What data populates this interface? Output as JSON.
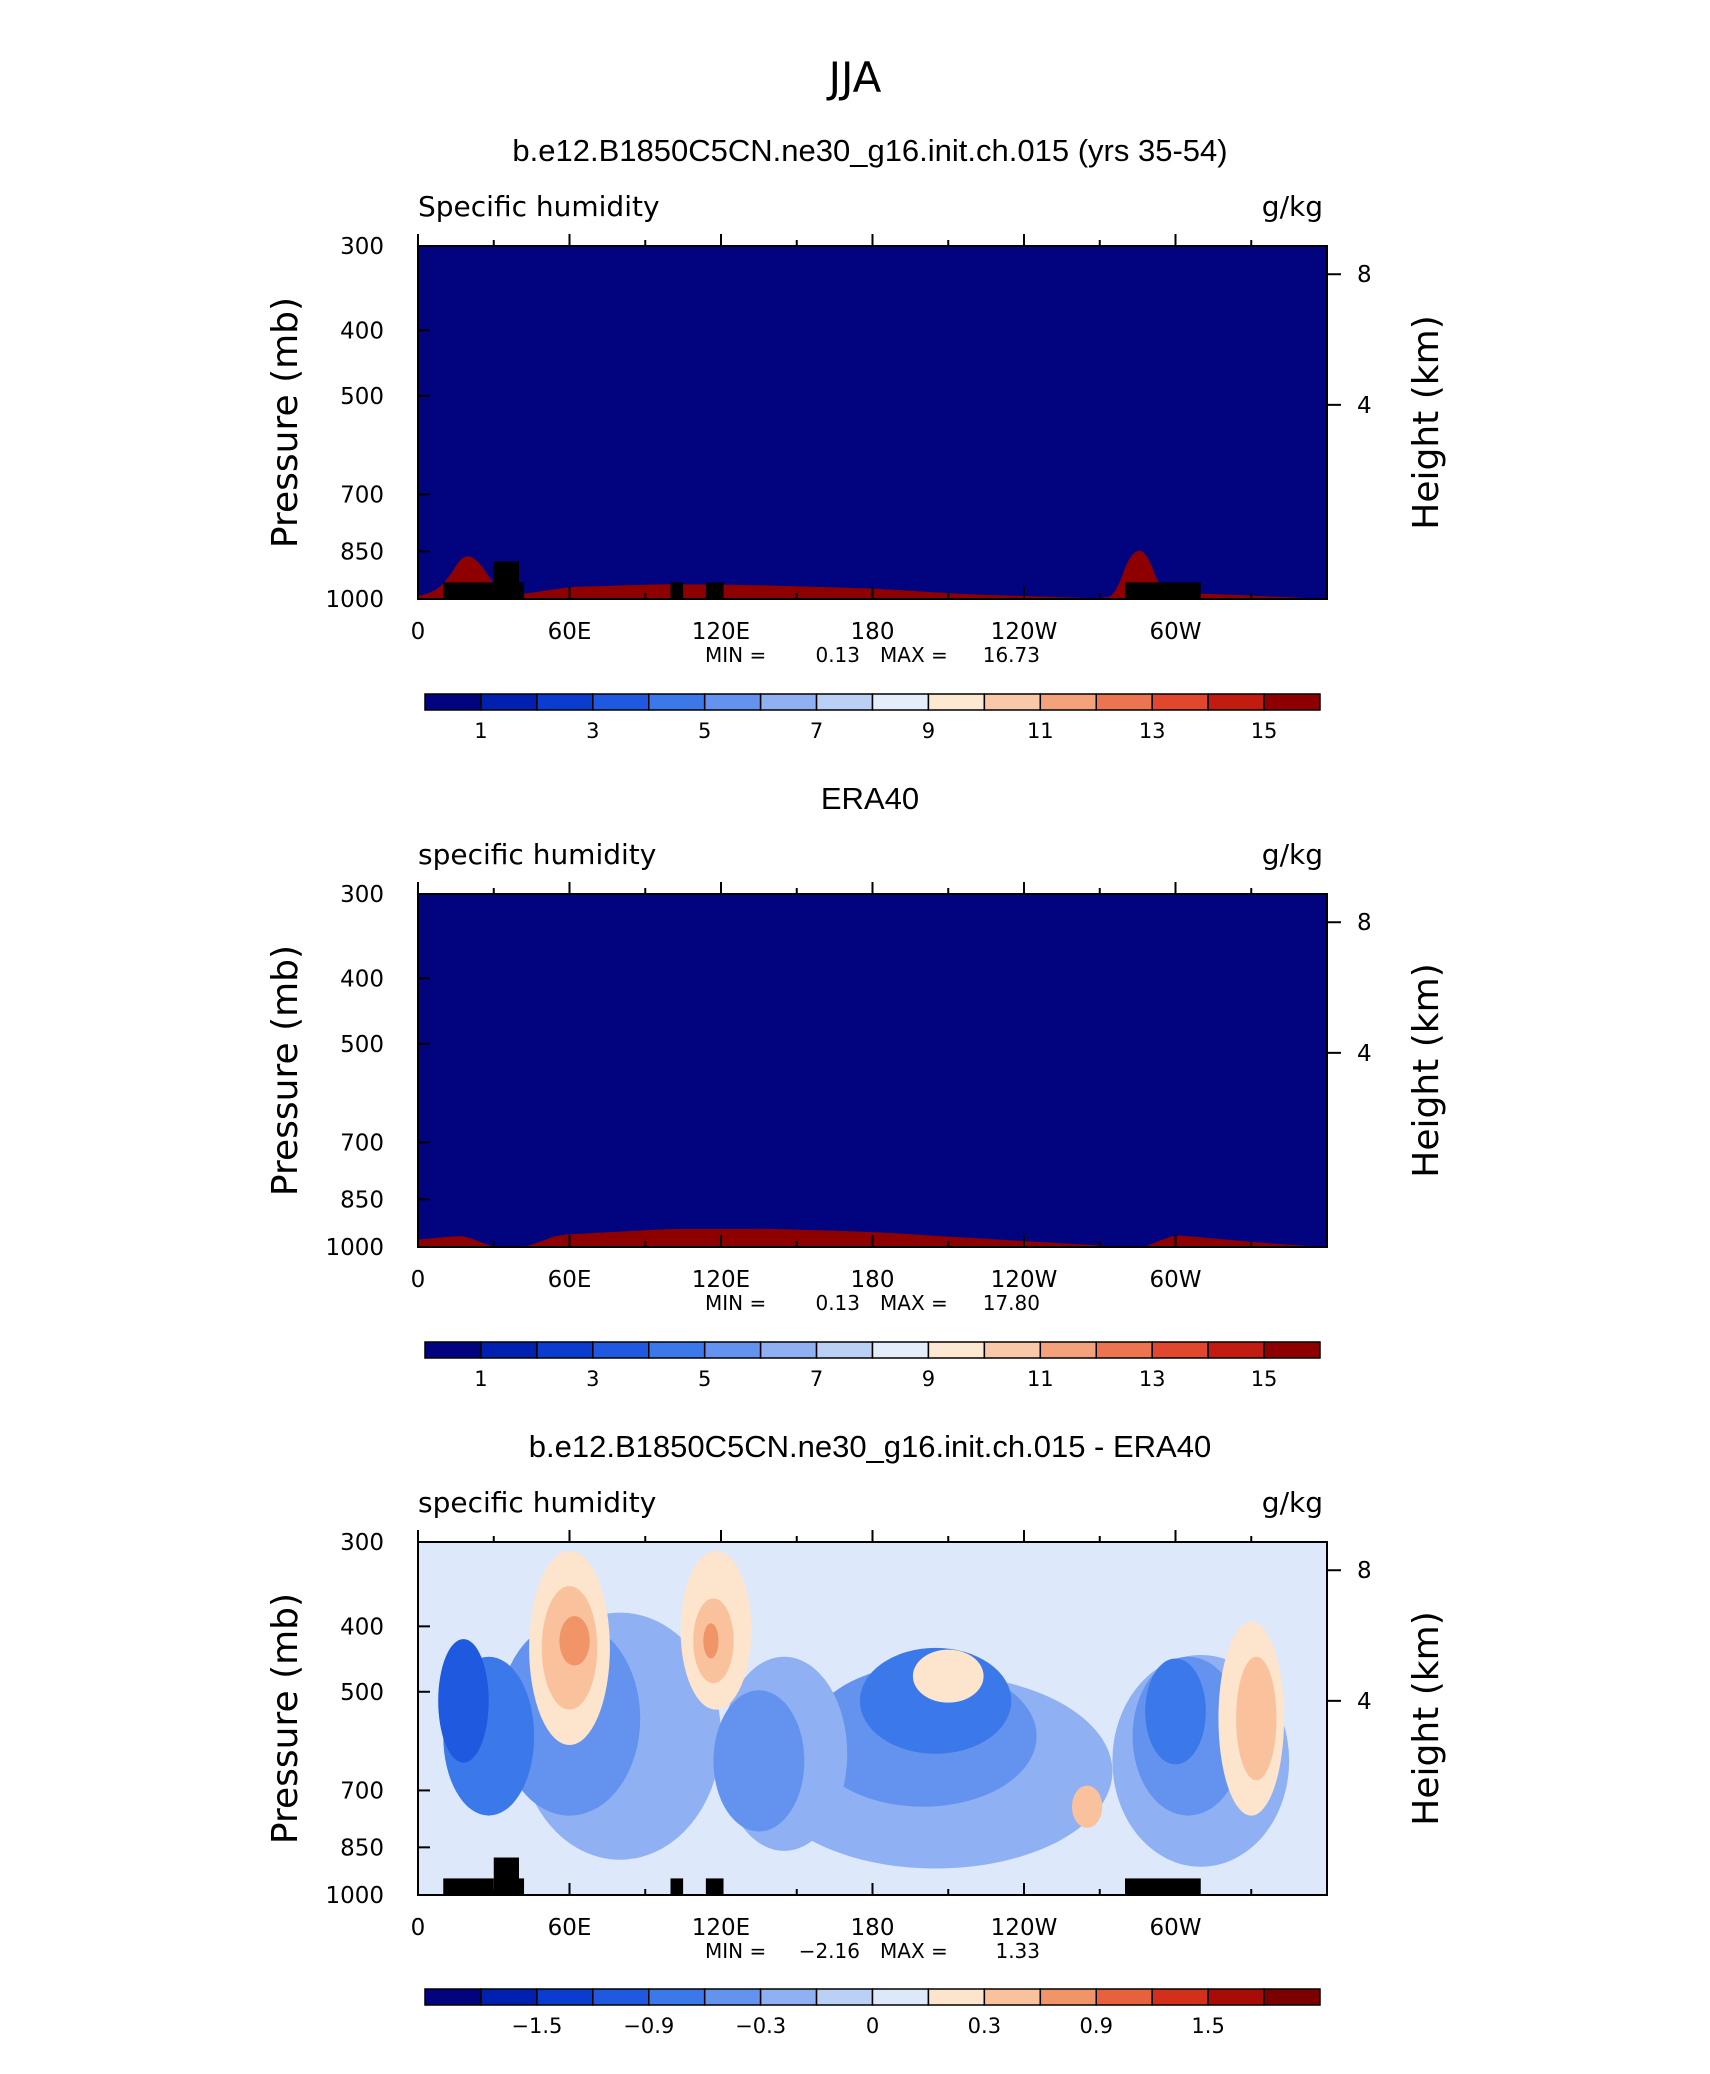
{
  "figure": {
    "title": "JJA"
  },
  "chart_data": [
    {
      "type": "contour",
      "title": "b.e12.B1850C5CN.ne30_g16.init.ch.015 (yrs 35-54)",
      "left_label": "Specific humidity",
      "right_label": "g/kg",
      "ylabel": "Pressure (mb)",
      "y2label": "Height (km)",
      "x_ticks": [
        "0",
        "60E",
        "120E",
        "180",
        "120W",
        "60W"
      ],
      "x_tick_values": [
        0,
        60,
        120,
        180,
        240,
        300
      ],
      "xlim": [
        0,
        360
      ],
      "y_ticks": [
        "300",
        "400",
        "500",
        "700",
        "850",
        "1000"
      ],
      "y_tick_values": [
        300,
        400,
        500,
        700,
        850,
        1000
      ],
      "ylim": [
        1000,
        300
      ],
      "y2_ticks": [
        "8",
        "4"
      ],
      "y2_tick_values": [
        8,
        4
      ],
      "min_text": "0.13",
      "max_text": "16.73",
      "colorbar": {
        "labels": [
          "1",
          "3",
          "5",
          "7",
          "9",
          "11",
          "13",
          "15"
        ],
        "colors": [
          "#02037f",
          "#0020b0",
          "#0a3ccf",
          "#1f59df",
          "#3b78e9",
          "#6393ef",
          "#8fb0f2",
          "#bad0f5",
          "#e3eefa",
          "#fde8d2",
          "#f9c8a8",
          "#f4a27c",
          "#ec7451",
          "#e1472c",
          "#c21c10",
          "#8e0000"
        ]
      }
    },
    {
      "type": "contour",
      "title": "ERA40",
      "left_label": "specific humidity",
      "right_label": "g/kg",
      "ylabel": "Pressure (mb)",
      "y2label": "Height (km)",
      "x_ticks": [
        "0",
        "60E",
        "120E",
        "180",
        "120W",
        "60W"
      ],
      "x_tick_values": [
        0,
        60,
        120,
        180,
        240,
        300
      ],
      "xlim": [
        0,
        360
      ],
      "y_ticks": [
        "300",
        "400",
        "500",
        "700",
        "850",
        "1000"
      ],
      "y_tick_values": [
        300,
        400,
        500,
        700,
        850,
        1000
      ],
      "ylim": [
        1000,
        300
      ],
      "y2_ticks": [
        "8",
        "4"
      ],
      "y2_tick_values": [
        8,
        4
      ],
      "min_text": "0.13",
      "max_text": "17.80",
      "colorbar": {
        "labels": [
          "1",
          "3",
          "5",
          "7",
          "9",
          "11",
          "13",
          "15"
        ],
        "colors": [
          "#02037f",
          "#0020b0",
          "#0a3ccf",
          "#1f59df",
          "#3b78e9",
          "#6393ef",
          "#8fb0f2",
          "#bad0f5",
          "#e3eefa",
          "#fde8d2",
          "#f9c8a8",
          "#f4a27c",
          "#ec7451",
          "#e1472c",
          "#c21c10",
          "#8e0000"
        ]
      }
    },
    {
      "type": "contour",
      "title": "b.e12.B1850C5CN.ne30_g16.init.ch.015 - ERA40",
      "left_label": "specific humidity",
      "right_label": "g/kg",
      "ylabel": "Pressure (mb)",
      "y2label": "Height (km)",
      "x_ticks": [
        "0",
        "60E",
        "120E",
        "180",
        "120W",
        "60W"
      ],
      "x_tick_values": [
        0,
        60,
        120,
        180,
        240,
        300
      ],
      "xlim": [
        0,
        360
      ],
      "y_ticks": [
        "300",
        "400",
        "500",
        "700",
        "850",
        "1000"
      ],
      "y_tick_values": [
        300,
        400,
        500,
        700,
        850,
        1000
      ],
      "ylim": [
        1000,
        300
      ],
      "y2_ticks": [
        "8",
        "4"
      ],
      "y2_tick_values": [
        8,
        4
      ],
      "min_text": "−2.16",
      "max_text": "1.33",
      "colorbar": {
        "labels": [
          "−1.5",
          "−0.9",
          "−0.3",
          "0",
          "0.3",
          "0.9",
          "1.5"
        ],
        "colors": [
          "#02037f",
          "#0020b0",
          "#0a3ccf",
          "#1f59df",
          "#3b78e9",
          "#6393ef",
          "#8fb0f2",
          "#bad0f5",
          "#dde9fa",
          "#fde4cc",
          "#f9c29d",
          "#f19468",
          "#e7623c",
          "#d2301b",
          "#a80c06",
          "#7d0000"
        ]
      }
    }
  ]
}
